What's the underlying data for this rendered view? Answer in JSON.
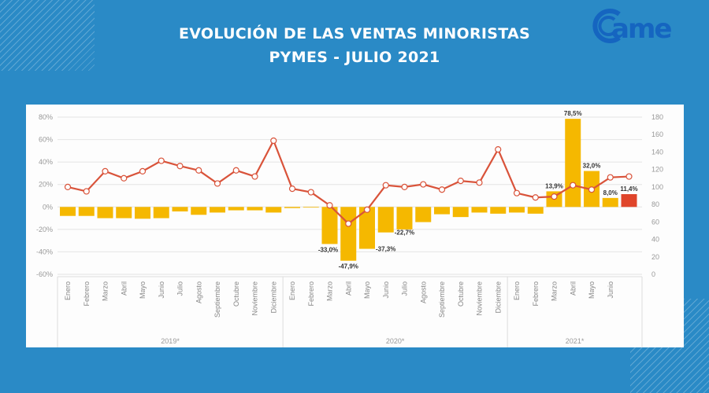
{
  "header": {
    "title_line1": "EVOLUCIÓN DE LAS VENTAS MINORISTAS",
    "title_line2": "PYMES - JULIO 2021",
    "logo_text": "came"
  },
  "colors": {
    "background": "#2a8ac6",
    "bar": "#f5b800",
    "bar_highlight": "#e0452b",
    "line": "#d9533a",
    "logo": "#1565c0"
  },
  "chart_data": {
    "type": "bar+line",
    "grid": true,
    "legend": "none",
    "categories": [
      "Enero",
      "Febrero",
      "Marzo",
      "Abril",
      "Mayo",
      "Junio",
      "Julio",
      "Agosto",
      "Septiembre",
      "Octubre",
      "Noviembre",
      "Diciembre",
      "Enero",
      "Febrero",
      "Marzo",
      "Abril",
      "Mayo",
      "Junio",
      "Julio",
      "Agosto",
      "Septiembre",
      "Octubre",
      "Noviembre",
      "Diciembre",
      "Enero",
      "Febrero",
      "Marzo",
      "Abril",
      "Mayo",
      "Junio",
      ""
    ],
    "year_groups": [
      {
        "label": "2019*",
        "count": 12
      },
      {
        "label": "2020*",
        "count": 12
      },
      {
        "label": "2021*",
        "count": 7
      }
    ],
    "y_left": {
      "ticks": [
        "80%",
        "60%",
        "40%",
        "20%",
        "0%",
        "-20%",
        "-40%",
        "-60%"
      ],
      "range": [
        -60,
        80
      ]
    },
    "y_right": {
      "ticks": [
        "180",
        "160",
        "140",
        "120",
        "100",
        "80",
        "60",
        "40",
        "20",
        "0"
      ],
      "range": [
        0,
        180
      ]
    },
    "bars": {
      "axis": "left",
      "values": [
        -8,
        -8,
        -10,
        -10,
        -10.5,
        -10,
        -4,
        -7,
        -5,
        -3,
        -3,
        -5,
        -1,
        0,
        -33.0,
        -47.9,
        -37.3,
        -22.7,
        -20,
        -13.5,
        -6.5,
        -9,
        -5,
        -6,
        -5,
        -6,
        13.9,
        78.5,
        32.0,
        8.0,
        11.4
      ],
      "labels": [
        null,
        null,
        null,
        null,
        null,
        null,
        null,
        null,
        null,
        null,
        null,
        null,
        null,
        null,
        "-33,0%",
        "-47,9%",
        "-37,3%",
        "-22,7%",
        null,
        null,
        null,
        null,
        null,
        null,
        null,
        null,
        "13,9%",
        "78,5%",
        "32,0%",
        "8,0%",
        "11,4%"
      ],
      "highlight_index": 30
    },
    "line": {
      "axis": "right",
      "values": [
        100,
        95,
        118,
        110,
        118,
        130,
        124,
        119,
        104,
        119,
        112,
        153,
        98,
        94,
        79,
        58,
        74,
        102,
        100,
        103,
        97,
        107,
        105,
        143,
        93,
        88,
        89,
        102,
        97,
        111,
        112
      ]
    }
  }
}
